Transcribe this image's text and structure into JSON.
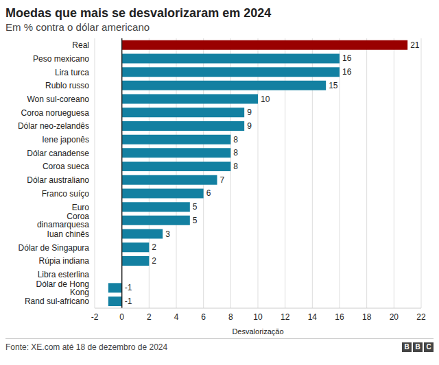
{
  "chart_data": {
    "type": "bar",
    "orientation": "horizontal",
    "title": "Moedas que mais se desvalorizaram em 2024",
    "subtitle": "Em % contra o dólar americano",
    "x_label": "Desvalorização",
    "source": "Fonte: XE.com até 18 de dezembro de 2024",
    "logo": "BBC",
    "categories": [
      "Real",
      "Peso mexicano",
      "Lira turca",
      "Rublo russo",
      "Won sul-coreano",
      "Coroa norueguesa",
      "Dólar neo-zelandês",
      "Iene japonês",
      "Dólar canadense",
      "Coroa sueca",
      "Dólar australiano",
      "Franco suíço",
      "Euro",
      "Coroa dinamarquesa",
      "Iuan chinês",
      "Dólar de Singapura",
      "Rúpia indiana",
      "Libra esterlina",
      "Dólar de Hong Kong",
      "Rand sul-africano"
    ],
    "values": [
      21,
      16,
      16,
      15,
      10,
      9,
      9,
      8,
      8,
      8,
      7,
      6,
      5,
      5,
      3,
      2,
      2,
      0,
      -1,
      -1
    ],
    "colors": [
      "#990000",
      "#1380a1",
      "#1380a1",
      "#1380a1",
      "#1380a1",
      "#1380a1",
      "#1380a1",
      "#1380a1",
      "#1380a1",
      "#1380a1",
      "#1380a1",
      "#1380a1",
      "#1380a1",
      "#1380a1",
      "#1380a1",
      "#1380a1",
      "#1380a1",
      "#1380a1",
      "#1380a1",
      "#1380a1"
    ],
    "xlim": [
      -2,
      22
    ],
    "xticks": [
      -2,
      0,
      2,
      4,
      6,
      8,
      10,
      12,
      14,
      16,
      18,
      20,
      22
    ],
    "grid": true,
    "data_labels": true
  }
}
